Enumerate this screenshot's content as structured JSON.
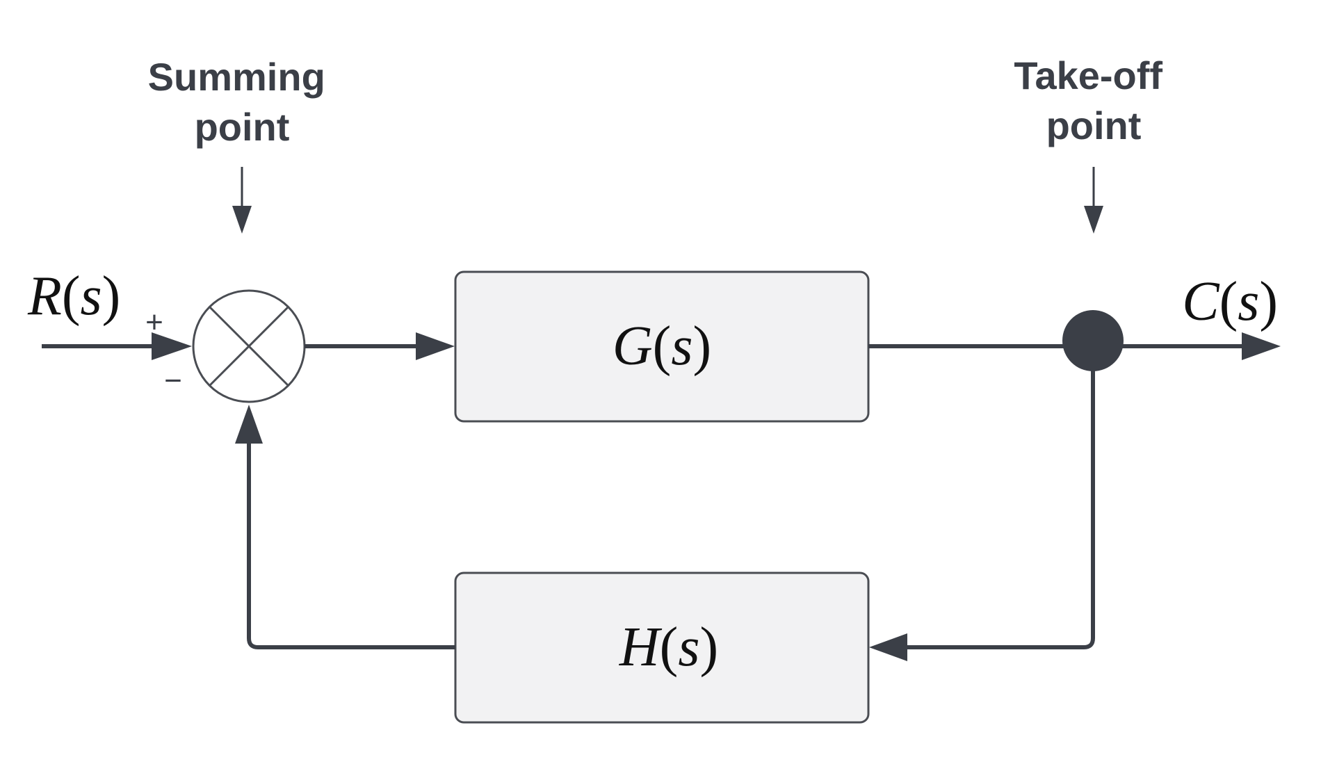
{
  "labels": {
    "summing_point": [
      "Summing",
      "point"
    ],
    "takeoff_point": [
      "Take-off",
      "point"
    ]
  },
  "signals": {
    "input": {
      "symbol": "R",
      "open": "(",
      "var": "s",
      "close": ")"
    },
    "output": {
      "symbol": "C",
      "open": "(",
      "var": "s",
      "close": ")"
    }
  },
  "blocks": {
    "forward": {
      "symbol": "G",
      "open": "(",
      "var": "s",
      "close": ")"
    },
    "feedback": {
      "symbol": "H",
      "open": "(",
      "var": "s",
      "close": ")"
    }
  },
  "signs": {
    "plus": "+",
    "minus": "−"
  },
  "colors": {
    "line": "#3b3f47",
    "block_fill": "#f2f2f3",
    "block_stroke": "#4a4d53",
    "text": "#3b3f47",
    "math_text": "#111111"
  }
}
